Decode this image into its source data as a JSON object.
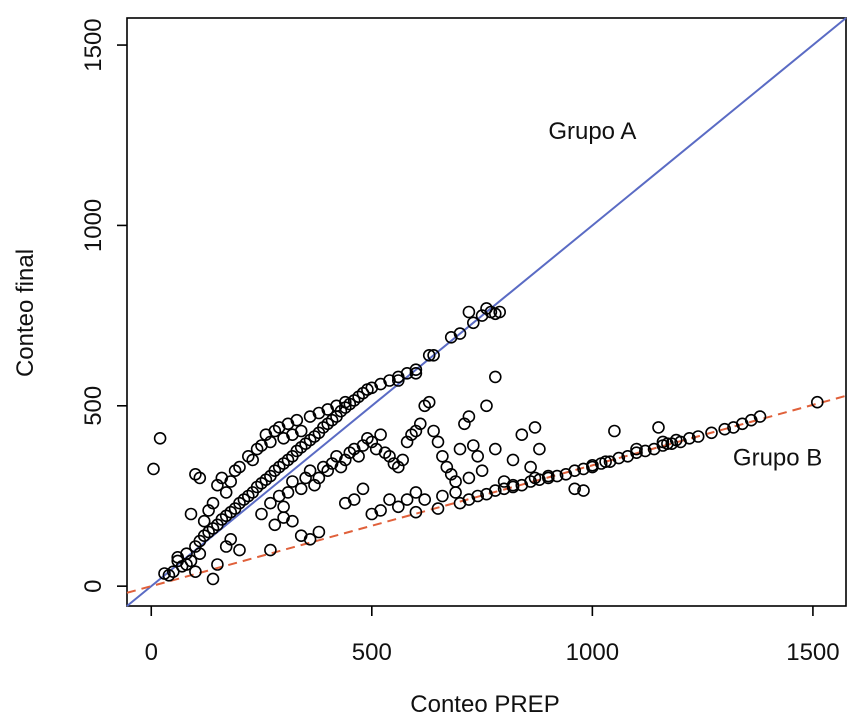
{
  "chart_data": {
    "type": "scatter",
    "title": "",
    "xlabel": "Conteo PREP",
    "ylabel": "Conteo final",
    "xlim": [
      -55,
      1575
    ],
    "ylim": [
      -55,
      1575
    ],
    "xticks": [
      0,
      500,
      1000,
      1500
    ],
    "yticks": [
      0,
      500,
      1000,
      1500
    ],
    "xtick_labels": [
      "0",
      "500",
      "1000",
      "1500"
    ],
    "ytick_labels": [
      "0",
      "500",
      "1000",
      "1500"
    ],
    "grid": false,
    "legend": "none",
    "annotations": [
      {
        "text": "Grupo A",
        "x": 1000,
        "y": 1240
      },
      {
        "text": "Grupo B",
        "x": 1420,
        "y": 335
      }
    ],
    "reference_lines": [
      {
        "label": "Grupo A",
        "slope": 1.0,
        "intercept": 0,
        "x_range": [
          -55,
          1575
        ],
        "color": "#5a6bc4",
        "dash": "solid"
      },
      {
        "label": "Grupo B",
        "slope": 0.335,
        "intercept": 0,
        "x_range": [
          -55,
          1575
        ],
        "color": "#e0603a",
        "dash": "dashed"
      }
    ],
    "series": [
      {
        "points": [
          [
            20,
            410
          ],
          [
            5,
            325
          ],
          [
            30,
            35
          ],
          [
            60,
            70
          ],
          [
            80,
            90
          ],
          [
            100,
            110
          ],
          [
            110,
            125
          ],
          [
            120,
            140
          ],
          [
            130,
            150
          ],
          [
            140,
            160
          ],
          [
            150,
            170
          ],
          [
            160,
            185
          ],
          [
            170,
            195
          ],
          [
            180,
            205
          ],
          [
            190,
            215
          ],
          [
            200,
            230
          ],
          [
            210,
            240
          ],
          [
            220,
            250
          ],
          [
            230,
            260
          ],
          [
            240,
            275
          ],
          [
            250,
            285
          ],
          [
            260,
            295
          ],
          [
            270,
            305
          ],
          [
            280,
            320
          ],
          [
            290,
            330
          ],
          [
            300,
            340
          ],
          [
            310,
            350
          ],
          [
            320,
            360
          ],
          [
            330,
            375
          ],
          [
            340,
            385
          ],
          [
            350,
            395
          ],
          [
            360,
            405
          ],
          [
            370,
            415
          ],
          [
            380,
            425
          ],
          [
            390,
            440
          ],
          [
            400,
            450
          ],
          [
            410,
            460
          ],
          [
            420,
            470
          ],
          [
            430,
            485
          ],
          [
            440,
            495
          ],
          [
            450,
            505
          ],
          [
            460,
            515
          ],
          [
            470,
            525
          ],
          [
            480,
            535
          ],
          [
            490,
            545
          ],
          [
            500,
            550
          ],
          [
            520,
            560
          ],
          [
            540,
            570
          ],
          [
            560,
            580
          ],
          [
            600,
            590
          ],
          [
            190,
            320
          ],
          [
            200,
            330
          ],
          [
            220,
            360
          ],
          [
            230,
            350
          ],
          [
            240,
            380
          ],
          [
            250,
            390
          ],
          [
            260,
            420
          ],
          [
            270,
            400
          ],
          [
            280,
            430
          ],
          [
            290,
            440
          ],
          [
            300,
            410
          ],
          [
            310,
            450
          ],
          [
            320,
            420
          ],
          [
            330,
            460
          ],
          [
            340,
            430
          ],
          [
            360,
            470
          ],
          [
            380,
            480
          ],
          [
            400,
            490
          ],
          [
            420,
            500
          ],
          [
            440,
            510
          ],
          [
            150,
            280
          ],
          [
            160,
            300
          ],
          [
            170,
            260
          ],
          [
            180,
            290
          ],
          [
            130,
            210
          ],
          [
            140,
            230
          ],
          [
            120,
            180
          ],
          [
            110,
            300
          ],
          [
            100,
            310
          ],
          [
            90,
            200
          ],
          [
            250,
            200
          ],
          [
            270,
            230
          ],
          [
            290,
            250
          ],
          [
            300,
            220
          ],
          [
            310,
            260
          ],
          [
            320,
            290
          ],
          [
            340,
            270
          ],
          [
            350,
            300
          ],
          [
            360,
            320
          ],
          [
            370,
            280
          ],
          [
            380,
            300
          ],
          [
            390,
            330
          ],
          [
            400,
            320
          ],
          [
            410,
            340
          ],
          [
            420,
            360
          ],
          [
            430,
            330
          ],
          [
            440,
            350
          ],
          [
            450,
            370
          ],
          [
            460,
            380
          ],
          [
            470,
            360
          ],
          [
            480,
            390
          ],
          [
            490,
            410
          ],
          [
            500,
            400
          ],
          [
            510,
            380
          ],
          [
            520,
            420
          ],
          [
            530,
            370
          ],
          [
            540,
            360
          ],
          [
            550,
            340
          ],
          [
            560,
            330
          ],
          [
            570,
            350
          ],
          [
            580,
            400
          ],
          [
            590,
            420
          ],
          [
            600,
            430
          ],
          [
            610,
            450
          ],
          [
            620,
            500
          ],
          [
            630,
            510
          ],
          [
            640,
            430
          ],
          [
            650,
            400
          ],
          [
            660,
            360
          ],
          [
            670,
            330
          ],
          [
            680,
            310
          ],
          [
            690,
            290
          ],
          [
            700,
            380
          ],
          [
            710,
            450
          ],
          [
            720,
            470
          ],
          [
            730,
            390
          ],
          [
            740,
            360
          ],
          [
            760,
            500
          ],
          [
            780,
            580
          ],
          [
            840,
            420
          ],
          [
            870,
            440
          ],
          [
            880,
            380
          ],
          [
            860,
            330
          ],
          [
            820,
            350
          ],
          [
            800,
            290
          ],
          [
            780,
            380
          ],
          [
            750,
            320
          ],
          [
            720,
            300
          ],
          [
            690,
            260
          ],
          [
            660,
            250
          ],
          [
            620,
            240
          ],
          [
            600,
            260
          ],
          [
            580,
            240
          ],
          [
            560,
            220
          ],
          [
            540,
            240
          ],
          [
            520,
            210
          ],
          [
            500,
            200
          ],
          [
            480,
            270
          ],
          [
            460,
            240
          ],
          [
            440,
            230
          ],
          [
            380,
            150
          ],
          [
            360,
            130
          ],
          [
            340,
            140
          ],
          [
            320,
            180
          ],
          [
            300,
            190
          ],
          [
            280,
            170
          ],
          [
            270,
            100
          ],
          [
            200,
            100
          ],
          [
            180,
            130
          ],
          [
            170,
            110
          ],
          [
            150,
            60
          ],
          [
            140,
            20
          ],
          [
            100,
            40
          ],
          [
            80,
            60
          ],
          [
            60,
            80
          ],
          [
            40,
            30
          ],
          [
            50,
            40
          ],
          [
            70,
            55
          ],
          [
            90,
            70
          ],
          [
            110,
            90
          ],
          [
            640,
            640
          ],
          [
            680,
            690
          ],
          [
            700,
            700
          ],
          [
            730,
            730
          ],
          [
            750,
            750
          ],
          [
            770,
            760
          ],
          [
            780,
            755
          ],
          [
            790,
            760
          ],
          [
            720,
            760
          ],
          [
            760,
            770
          ],
          [
            630,
            640
          ],
          [
            600,
            600
          ],
          [
            580,
            590
          ],
          [
            560,
            570
          ],
          [
            600,
            205
          ],
          [
            650,
            215
          ],
          [
            700,
            230
          ],
          [
            720,
            240
          ],
          [
            740,
            250
          ],
          [
            760,
            255
          ],
          [
            780,
            265
          ],
          [
            800,
            270
          ],
          [
            820,
            275
          ],
          [
            840,
            280
          ],
          [
            860,
            290
          ],
          [
            880,
            295
          ],
          [
            900,
            300
          ],
          [
            920,
            305
          ],
          [
            940,
            310
          ],
          [
            960,
            320
          ],
          [
            980,
            325
          ],
          [
            1000,
            335
          ],
          [
            1020,
            340
          ],
          [
            1040,
            345
          ],
          [
            1060,
            355
          ],
          [
            1080,
            360
          ],
          [
            1100,
            370
          ],
          [
            1120,
            375
          ],
          [
            1140,
            380
          ],
          [
            1160,
            390
          ],
          [
            1180,
            395
          ],
          [
            1200,
            400
          ],
          [
            1220,
            410
          ],
          [
            1240,
            415
          ],
          [
            1270,
            425
          ],
          [
            1300,
            435
          ],
          [
            1320,
            440
          ],
          [
            1340,
            450
          ],
          [
            1360,
            460
          ],
          [
            1380,
            470
          ],
          [
            1510,
            510
          ],
          [
            1150,
            440
          ],
          [
            1050,
            430
          ],
          [
            960,
            270
          ],
          [
            980,
            265
          ],
          [
            1000,
            330
          ],
          [
            1030,
            345
          ],
          [
            1100,
            380
          ],
          [
            1160,
            400
          ],
          [
            1170,
            395
          ],
          [
            1190,
            405
          ],
          [
            900,
            305
          ],
          [
            870,
            300
          ],
          [
            820,
            280
          ]
        ]
      }
    ]
  }
}
